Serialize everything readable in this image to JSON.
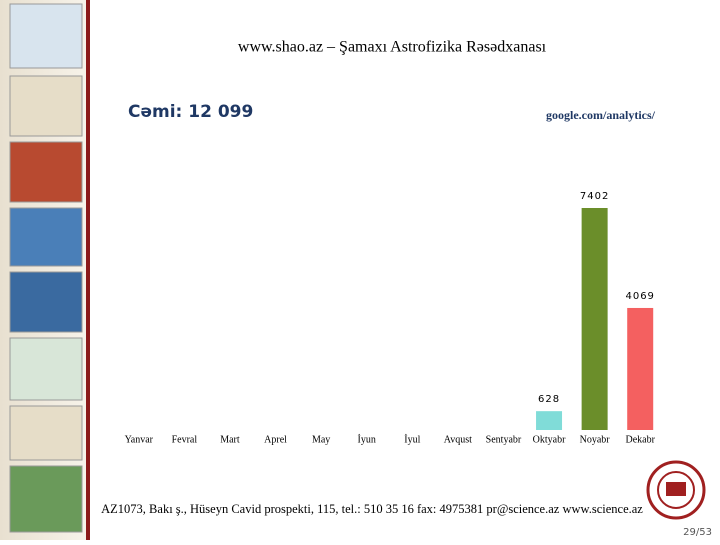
{
  "chart_data": {
    "type": "bar",
    "title": "www.shao.az – Şamaxı Astrofizika Rəsədxanası",
    "subtitle": "Cəmi: 12 099",
    "source": "google.com/analytics/",
    "categories": [
      "Yanvar",
      "Fevral",
      "Mart",
      "Aprel",
      "May",
      "İyun",
      "İyul",
      "Avqust",
      "Sentyabr",
      "Oktyabr",
      "Noyabr",
      "Dekabr"
    ],
    "values": [
      null,
      null,
      null,
      null,
      null,
      null,
      null,
      null,
      null,
      628,
      7402,
      4069
    ],
    "colors": [
      null,
      null,
      null,
      null,
      null,
      null,
      null,
      null,
      null,
      "#80dcd8",
      "#6b8e2a",
      "#f46060"
    ]
  },
  "footer": "AZ1073, Bakı ş., Hüseyn Cavid prospekti, 115, tel.: 510 35 16 fax: 4975381 pr@science.az www.science.az",
  "page_number": "29/53"
}
